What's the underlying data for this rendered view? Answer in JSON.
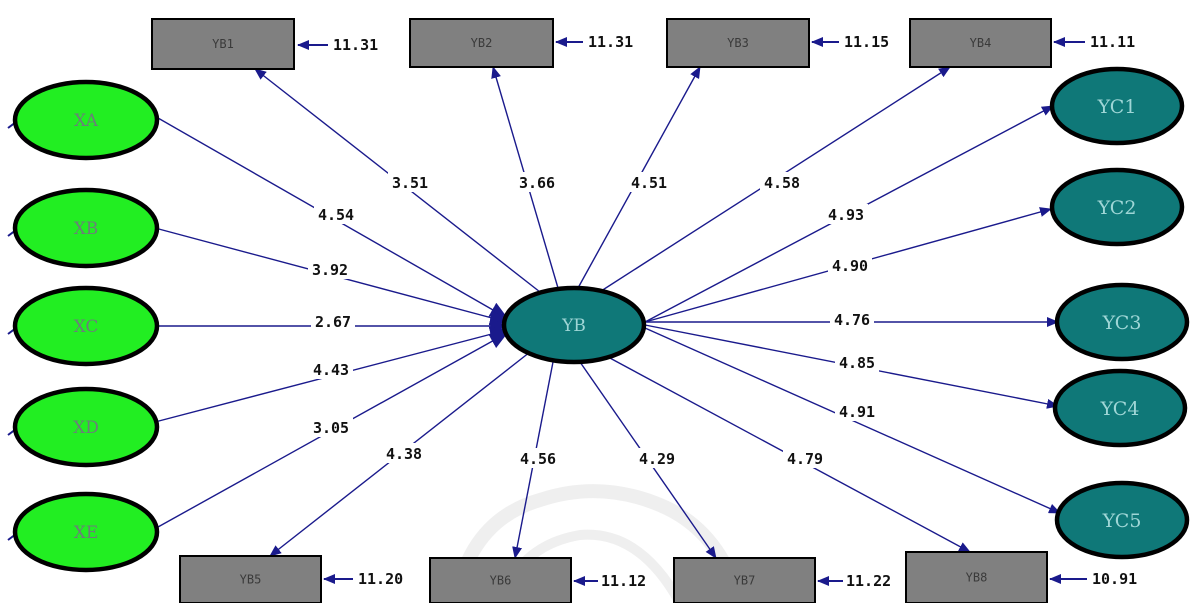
{
  "colors": {
    "exogenous_fill": "#22ee22",
    "latent_fill": "#0f7878",
    "box_fill": "#808080",
    "arrow": "#1a1a8c",
    "watermark": "#e2e2e2"
  },
  "central": {
    "id": "YB",
    "label": "YB"
  },
  "exogenous": [
    {
      "id": "XA",
      "label": "XA",
      "coef": "4.54"
    },
    {
      "id": "XB",
      "label": "XB",
      "coef": "3.92"
    },
    {
      "id": "XC",
      "label": "XC",
      "coef": "2.67"
    },
    {
      "id": "XD",
      "label": "XD",
      "coef": "4.43"
    },
    {
      "id": "XE",
      "label": "XE",
      "coef": "3.05"
    }
  ],
  "outcomes": [
    {
      "id": "YC1",
      "label": "YC1",
      "coef": "4.93"
    },
    {
      "id": "YC2",
      "label": "YC2",
      "coef": "4.90"
    },
    {
      "id": "YC3",
      "label": "YC3",
      "coef": "4.76"
    },
    {
      "id": "YC4",
      "label": "YC4",
      "coef": "4.85"
    },
    {
      "id": "YC5",
      "label": "YC5",
      "coef": "4.91"
    }
  ],
  "indicators": [
    {
      "id": "YB1",
      "label": "YB1",
      "coef": "3.51",
      "error": "11.31"
    },
    {
      "id": "YB2",
      "label": "YB2",
      "coef": "3.66",
      "error": "11.31"
    },
    {
      "id": "YB3",
      "label": "YB3",
      "coef": "4.51",
      "error": "11.15"
    },
    {
      "id": "YB4",
      "label": "YB4",
      "coef": "4.58",
      "error": "11.11"
    },
    {
      "id": "YB5",
      "label": "YB5",
      "coef": "4.38",
      "error": "11.20"
    },
    {
      "id": "YB6",
      "label": "YB6",
      "coef": "4.56",
      "error": "11.12"
    },
    {
      "id": "YB7",
      "label": "YB7",
      "coef": "4.29",
      "error": "11.22"
    },
    {
      "id": "YB8",
      "label": "YB8",
      "coef": "4.79",
      "error": "10.91"
    }
  ]
}
